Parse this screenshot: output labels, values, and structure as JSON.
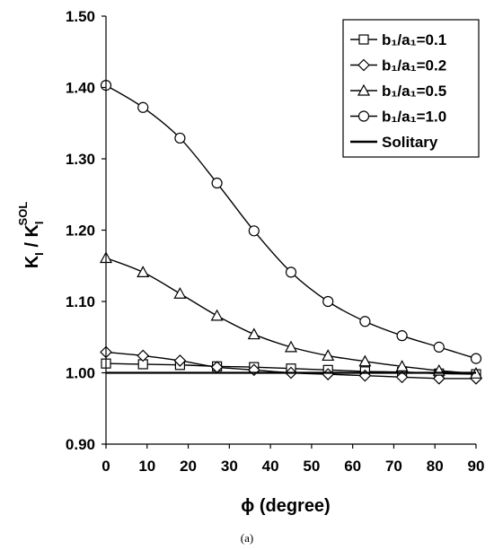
{
  "chart_data": {
    "type": "line",
    "xlabel": "ϕ (degree)",
    "ylabel": {
      "main": "K",
      "sub": "I",
      "sep": " / K",
      "sub2": "I",
      "sup2": "SOL"
    },
    "caption": "(a)",
    "xlim": [
      0,
      90
    ],
    "ylim": [
      0.9,
      1.5
    ],
    "xticks": [
      0,
      10,
      20,
      30,
      40,
      50,
      60,
      70,
      80,
      90
    ],
    "yticks": [
      0.9,
      1.0,
      1.1,
      1.2,
      1.3,
      1.4,
      1.5
    ],
    "ytick_labels": [
      "0.90",
      "1.00",
      "1.10",
      "1.20",
      "1.30",
      "1.40",
      "1.50"
    ],
    "grid": false,
    "legend_position": "top-right",
    "x": [
      0,
      9,
      18,
      27,
      36,
      45,
      54,
      63,
      72,
      81,
      90
    ],
    "series": [
      {
        "name": "b₁/a₁=0.1",
        "marker": "square",
        "values": [
          1.013,
          1.012,
          1.011,
          1.009,
          1.008,
          1.006,
          1.004,
          1.002,
          1.001,
          0.999,
          0.998
        ]
      },
      {
        "name": "b₁/a₁=0.2",
        "marker": "diamond",
        "values": [
          1.029,
          1.024,
          1.017,
          1.008,
          1.004,
          1.0,
          0.998,
          0.996,
          0.994,
          0.992,
          0.992
        ]
      },
      {
        "name": "b₁/a₁=0.5",
        "marker": "triangle",
        "values": [
          1.161,
          1.141,
          1.111,
          1.08,
          1.054,
          1.036,
          1.024,
          1.016,
          1.009,
          1.003,
          0.999
        ]
      },
      {
        "name": "b₁/a₁=1.0",
        "marker": "circle",
        "values": [
          1.403,
          1.372,
          1.329,
          1.266,
          1.199,
          1.141,
          1.1,
          1.072,
          1.052,
          1.036,
          1.02
        ]
      },
      {
        "name": "Solitary",
        "marker": "none",
        "values": [
          1.0,
          1.0,
          1.0,
          1.0,
          1.0,
          1.0,
          1.0,
          1.0,
          1.0,
          1.0,
          1.0
        ]
      }
    ]
  }
}
